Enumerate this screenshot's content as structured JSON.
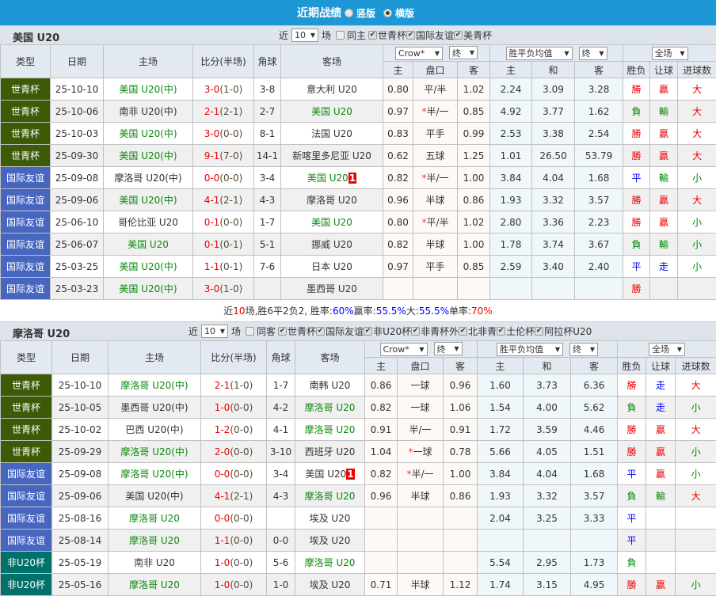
{
  "topbar": {
    "title": "近期战绩",
    "options": [
      "竖版",
      "横版"
    ],
    "selected": "横版"
  },
  "colors": {
    "topbar": "#1d97d5",
    "世青杯": "#3d5a06",
    "国际友谊": "#4766c0",
    "非U20杯": "#00706a",
    "win": "#e00",
    "lose": "#080",
    "draw": "#00f"
  },
  "headers": {
    "type": "类型",
    "date": "日期",
    "home": "主场",
    "score": "比分(半场)",
    "corner": "角球",
    "away": "客场",
    "crow": "Crow*",
    "final": "终",
    "avg": "胜平负均值",
    "full": "全场",
    "sub": [
      "主",
      "盘口",
      "客",
      "主",
      "和",
      "客",
      "胜负",
      "让球",
      "进球数"
    ]
  },
  "sections": [
    {
      "team": "美国 U20",
      "controls": {
        "near": "近",
        "count": "10",
        "unit": "场",
        "same": "同主",
        "filters": [
          "世青杯",
          "国际友谊",
          "美青杯"
        ]
      },
      "rows": [
        {
          "type": "世青杯",
          "date": "25-10-10",
          "home": "美国 U20(中)",
          "home_hl": true,
          "score": "3-0",
          "half": "(1-0)",
          "corner": "3-8",
          "away": "意大利 U20",
          "o1": "0.80",
          "hc": "平/半",
          "o2": "1.02",
          "a1": "2.24",
          "a2": "3.09",
          "a3": "3.28",
          "res": "勝",
          "hres": "贏",
          "gres": "大"
        },
        {
          "type": "世青杯",
          "date": "25-10-06",
          "home": "南非 U20(中)",
          "score": "2-1",
          "half": "(2-1)",
          "corner": "2-7",
          "away": "美国 U20",
          "away_hl": true,
          "o1": "0.97",
          "hc": "*半/一",
          "o2": "0.85",
          "a1": "4.92",
          "a2": "3.77",
          "a3": "1.62",
          "res": "負",
          "hres": "輸",
          "gres": "大"
        },
        {
          "type": "世青杯",
          "date": "25-10-03",
          "home": "美国 U20(中)",
          "home_hl": true,
          "score": "3-0",
          "half": "(0-0)",
          "corner": "8-1",
          "away": "法国 U20",
          "o1": "0.83",
          "hc": "平手",
          "o2": "0.99",
          "a1": "2.53",
          "a2": "3.38",
          "a3": "2.54",
          "res": "勝",
          "hres": "贏",
          "gres": "大"
        },
        {
          "type": "世青杯",
          "date": "25-09-30",
          "home": "美国 U20(中)",
          "home_hl": true,
          "score": "9-1",
          "half": "(7-0)",
          "corner": "14-1",
          "away": "新喀里多尼亚 U20",
          "o1": "0.62",
          "hc": "五球",
          "o2": "1.25",
          "a1": "1.01",
          "a2": "26.50",
          "a3": "53.79",
          "res": "勝",
          "hres": "贏",
          "gres": "大"
        },
        {
          "type": "国际友谊",
          "date": "25-09-08",
          "home": "摩洛哥 U20(中)",
          "score": "0-0",
          "half": "(0-0)",
          "corner": "3-4",
          "away": "美国 U20",
          "away_hl": true,
          "away_badge": "1",
          "o1": "0.82",
          "hc": "*半/一",
          "o2": "1.00",
          "a1": "3.84",
          "a2": "4.04",
          "a3": "1.68",
          "res": "平",
          "hres": "輸",
          "gres": "小"
        },
        {
          "type": "国际友谊",
          "date": "25-09-06",
          "home": "美国 U20(中)",
          "home_hl": true,
          "score": "4-1",
          "half": "(2-1)",
          "corner": "4-3",
          "away": "摩洛哥 U20",
          "o1": "0.96",
          "hc": "半球",
          "o2": "0.86",
          "a1": "1.93",
          "a2": "3.32",
          "a3": "3.57",
          "res": "勝",
          "hres": "贏",
          "gres": "大"
        },
        {
          "type": "国际友谊",
          "date": "25-06-10",
          "home": "哥伦比亚 U20",
          "score": "0-1",
          "half": "(0-0)",
          "corner": "1-7",
          "away": "美国 U20",
          "away_hl": true,
          "o1": "0.80",
          "hc": "*平/半",
          "o2": "1.02",
          "a1": "2.80",
          "a2": "3.36",
          "a3": "2.23",
          "res": "勝",
          "hres": "贏",
          "gres": "小"
        },
        {
          "type": "国际友谊",
          "date": "25-06-07",
          "home": "美国 U20",
          "home_hl": true,
          "score": "0-1",
          "half": "(0-1)",
          "corner": "5-1",
          "away": "挪威 U20",
          "o1": "0.82",
          "hc": "半球",
          "o2": "1.00",
          "a1": "1.78",
          "a2": "3.74",
          "a3": "3.67",
          "res": "負",
          "hres": "輸",
          "gres": "小"
        },
        {
          "type": "国际友谊",
          "date": "25-03-25",
          "home": "美国 U20(中)",
          "home_hl": true,
          "score": "1-1",
          "half": "(0-1)",
          "corner": "7-6",
          "away": "日本 U20",
          "o1": "0.97",
          "hc": "平手",
          "o2": "0.85",
          "a1": "2.59",
          "a2": "3.40",
          "a3": "2.40",
          "res": "平",
          "hres": "走",
          "gres": "小"
        },
        {
          "type": "国际友谊",
          "date": "25-03-23",
          "home": "美国 U20(中)",
          "home_hl": true,
          "score": "3-0",
          "half": "(1-0)",
          "corner": "",
          "away": "墨西哥 U20",
          "o1": "",
          "hc": "",
          "o2": "",
          "a1": "",
          "a2": "",
          "a3": "",
          "res": "勝",
          "hres": "",
          "gres": ""
        }
      ],
      "summary": {
        "p1": "近",
        "n": "10",
        "p2": "场,胜6平2负2, 胜率:",
        "win_rate": "60%",
        "p3": " 赢率:",
        "hc_rate": "55.5%",
        "p4": " 大:",
        "big_rate": "55.5%",
        "p5": " 单率:",
        "odd_rate": "70%"
      }
    },
    {
      "team": "摩洛哥 U20",
      "controls": {
        "near": "近",
        "count": "10",
        "unit": "场",
        "same": "同客",
        "filters": [
          "世青杯",
          "国际友谊",
          "非U20杯",
          "非青杯外",
          "北非青",
          "土伦杯",
          "阿拉杯U20"
        ]
      },
      "rows": [
        {
          "type": "世青杯",
          "date": "25-10-10",
          "home": "摩洛哥 U20(中)",
          "home_hl": true,
          "score": "2-1",
          "half": "(1-0)",
          "corner": "1-7",
          "away": "南韩 U20",
          "o1": "0.86",
          "hc": "一球",
          "o2": "0.96",
          "a1": "1.60",
          "a2": "3.73",
          "a3": "6.36",
          "res": "勝",
          "hres": "走",
          "gres": "大"
        },
        {
          "type": "世青杯",
          "date": "25-10-05",
          "home": "墨西哥 U20(中)",
          "score": "1-0",
          "half": "(0-0)",
          "corner": "4-2",
          "away": "摩洛哥 U20",
          "away_hl": true,
          "o1": "0.82",
          "hc": "一球",
          "o2": "1.06",
          "a1": "1.54",
          "a2": "4.00",
          "a3": "5.62",
          "res": "負",
          "hres": "走",
          "gres": "小"
        },
        {
          "type": "世青杯",
          "date": "25-10-02",
          "home": "巴西 U20(中)",
          "score": "1-2",
          "half": "(0-0)",
          "corner": "4-1",
          "away": "摩洛哥 U20",
          "away_hl": true,
          "o1": "0.91",
          "hc": "半/一",
          "o2": "0.91",
          "a1": "1.72",
          "a2": "3.59",
          "a3": "4.46",
          "res": "勝",
          "hres": "贏",
          "gres": "大"
        },
        {
          "type": "世青杯",
          "date": "25-09-29",
          "home": "摩洛哥 U20(中)",
          "home_hl": true,
          "score": "2-0",
          "half": "(0-0)",
          "corner": "3-10",
          "away": "西班牙 U20",
          "o1": "1.04",
          "hc": "*一球",
          "o2": "0.78",
          "a1": "5.66",
          "a2": "4.05",
          "a3": "1.51",
          "res": "勝",
          "hres": "贏",
          "gres": "小"
        },
        {
          "type": "国际友谊",
          "date": "25-09-08",
          "home": "摩洛哥 U20(中)",
          "home_hl": true,
          "score": "0-0",
          "half": "(0-0)",
          "corner": "3-4",
          "away": "美国 U20",
          "away_badge": "1",
          "o1": "0.82",
          "hc": "*半/一",
          "o2": "1.00",
          "a1": "3.84",
          "a2": "4.04",
          "a3": "1.68",
          "res": "平",
          "hres": "贏",
          "gres": "小"
        },
        {
          "type": "国际友谊",
          "date": "25-09-06",
          "home": "美国 U20(中)",
          "score": "4-1",
          "half": "(2-1)",
          "corner": "4-3",
          "away": "摩洛哥 U20",
          "away_hl": true,
          "o1": "0.96",
          "hc": "半球",
          "o2": "0.86",
          "a1": "1.93",
          "a2": "3.32",
          "a3": "3.57",
          "res": "負",
          "hres": "輸",
          "gres": "大"
        },
        {
          "type": "国际友谊",
          "date": "25-08-16",
          "home": "摩洛哥 U20",
          "home_hl": true,
          "score": "0-0",
          "half": "(0-0)",
          "corner": "",
          "away": "埃及 U20",
          "o1": "",
          "hc": "",
          "o2": "",
          "a1": "2.04",
          "a2": "3.25",
          "a3": "3.33",
          "res": "平",
          "hres": "",
          "gres": ""
        },
        {
          "type": "国际友谊",
          "date": "25-08-14",
          "home": "摩洛哥 U20",
          "home_hl": true,
          "score": "1-1",
          "half": "(0-0)",
          "corner": "0-0",
          "away": "埃及 U20",
          "o1": "",
          "hc": "",
          "o2": "",
          "a1": "",
          "a2": "",
          "a3": "",
          "res": "平",
          "hres": "",
          "gres": ""
        },
        {
          "type": "非U20杯",
          "date": "25-05-19",
          "home": "南非 U20",
          "score": "1-0",
          "half": "(0-0)",
          "corner": "5-6",
          "away": "摩洛哥 U20",
          "away_hl": true,
          "o1": "",
          "hc": "",
          "o2": "",
          "a1": "5.54",
          "a2": "2.95",
          "a3": "1.73",
          "res": "負",
          "hres": "",
          "gres": ""
        },
        {
          "type": "非U20杯",
          "date": "25-05-16",
          "home": "摩洛哥 U20",
          "home_hl": true,
          "score": "1-0",
          "half": "(0-0)",
          "corner": "1-0",
          "away": "埃及 U20",
          "o1": "0.71",
          "hc": "半球",
          "o2": "1.12",
          "a1": "1.74",
          "a2": "3.15",
          "a3": "4.95",
          "res": "勝",
          "hres": "贏",
          "gres": "小"
        }
      ]
    }
  ]
}
